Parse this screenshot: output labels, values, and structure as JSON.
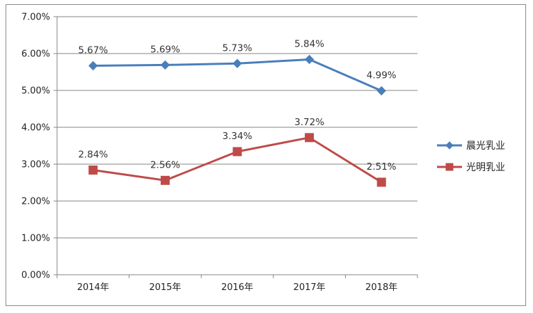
{
  "chart_data": {
    "type": "line",
    "categories": [
      "2014年",
      "2015年",
      "2016年",
      "2017年",
      "2018年"
    ],
    "series": [
      {
        "name": "晨光乳业",
        "values": [
          5.67,
          5.69,
          5.73,
          5.84,
          4.99
        ],
        "labels": [
          "5.67%",
          "5.69%",
          "5.73%",
          "5.84%",
          "4.99%"
        ],
        "color": "#4a7ebb",
        "marker": "diamond"
      },
      {
        "name": "光明乳业",
        "values": [
          2.84,
          2.56,
          3.34,
          3.72,
          2.51
        ],
        "labels": [
          "2.84%",
          "2.56%",
          "3.34%",
          "3.72%",
          "2.51%"
        ],
        "color": "#be4b48",
        "marker": "square"
      }
    ],
    "y_ticks": [
      0,
      1,
      2,
      3,
      4,
      5,
      6,
      7
    ],
    "y_tick_labels": [
      "0.00%",
      "1.00%",
      "2.00%",
      "3.00%",
      "4.00%",
      "5.00%",
      "6.00%",
      "7.00%"
    ],
    "ylim": [
      0,
      7
    ],
    "grid": true,
    "legend_position": "right"
  },
  "colors": {
    "gridline": "#868686",
    "axis": "#868686"
  }
}
